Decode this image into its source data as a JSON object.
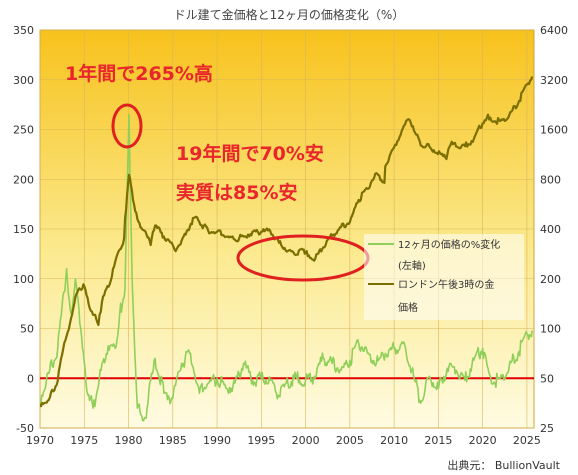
{
  "chart_data": {
    "type": "line",
    "title": "ドル建て金価格と12ヶ月の価格変化（%）",
    "source": "出典元：  BullionVault",
    "x_ticks": [
      "1970",
      "1975",
      "1980",
      "1985",
      "1990",
      "1995",
      "2000",
      "2005",
      "2010",
      "2015",
      "2020",
      "2025"
    ],
    "xlim": [
      1970,
      2025.8
    ],
    "y_left": {
      "ticks": [
        "-50",
        "0",
        "50",
        "100",
        "150",
        "200",
        "250",
        "300",
        "350"
      ],
      "ylim": [
        -50,
        350
      ]
    },
    "y_right": {
      "scale": "log",
      "ticks": [
        "25",
        "50",
        "100",
        "200",
        "400",
        "800",
        "1600",
        "3200",
        "6400"
      ],
      "ylim": [
        25,
        6400
      ]
    },
    "legend": {
      "placement": "center-right",
      "entries": [
        "12ヶ月の価格の%変化",
        "(左軸)",
        "ロンドン午後3時の金",
        "価格"
      ]
    },
    "annotations": [
      {
        "text": "1年間で265%高"
      },
      {
        "text": "19年間で70%安"
      },
      {
        "text": "実質は85%安"
      }
    ],
    "colors": {
      "pct_line": "#8fcf5a",
      "gold_line": "#7b6f00",
      "zero_line": "#e00000",
      "annot": "#e8262b",
      "ellipse": "#e02020"
    },
    "series": [
      {
        "name": "ロンドン午後3時の金価格",
        "axis": "right",
        "x": [
          1970,
          1971,
          1972,
          1973,
          1973.5,
          1974,
          1974.9,
          1975.5,
          1976.6,
          1977,
          1978,
          1979,
          1979.5,
          1980.05,
          1980.5,
          1981,
          1982.5,
          1983,
          1984,
          1985.2,
          1986,
          1987.5,
          1988,
          1989,
          1990,
          1991,
          1992,
          1993,
          1994,
          1995,
          1996,
          1997,
          1998,
          1999,
          1999.8,
          2000,
          2001.1,
          2002,
          2003,
          2004,
          2005,
          2006,
          2007,
          2008,
          2008.9,
          2009,
          2010,
          2011.6,
          2012,
          2013,
          2014,
          2015.9,
          2016.5,
          2017,
          2018,
          2019,
          2020.6,
          2021,
          2022,
          2023,
          2024,
          2025,
          2025.6
        ],
        "values": [
          35,
          37,
          48,
          90,
          115,
          155,
          185,
          140,
          105,
          145,
          195,
          300,
          350,
          850,
          600,
          460,
          320,
          420,
          360,
          300,
          340,
          470,
          440,
          390,
          385,
          360,
          345,
          360,
          385,
          385,
          390,
          330,
          295,
          280,
          300,
          285,
          265,
          310,
          365,
          410,
          440,
          600,
          700,
          870,
          760,
          960,
          1250,
          1850,
          1670,
          1280,
          1260,
          1060,
          1350,
          1260,
          1270,
          1400,
          1970,
          1800,
          1800,
          1950,
          2300,
          3000,
          3350
        ]
      },
      {
        "name": "12ヶ月の価格の%変化",
        "axis": "left",
        "x": [
          1970,
          1971,
          1972,
          1973,
          1973.5,
          1974,
          1974.5,
          1975.2,
          1976,
          1976.7,
          1977.5,
          1978.5,
          1979,
          1979.6,
          1980.05,
          1980.4,
          1981,
          1982,
          1982.6,
          1983,
          1984,
          1985,
          1986,
          1987,
          1988,
          1989,
          1990,
          1991,
          1992,
          1993,
          1994,
          1995,
          1996,
          1997,
          1998,
          1999,
          2000,
          2001,
          2002,
          2003,
          2004,
          2005,
          2006,
          2007,
          2008,
          2009,
          2010,
          2011,
          2012,
          2013,
          2014,
          2015,
          2016,
          2017,
          2018,
          2019,
          2020,
          2021,
          2022,
          2023,
          2024,
          2025,
          2025.6
        ],
        "values": [
          -22,
          5,
          30,
          110,
          65,
          100,
          55,
          -5,
          -30,
          0,
          25,
          30,
          65,
          90,
          265,
          100,
          -30,
          -40,
          5,
          20,
          -15,
          -20,
          15,
          25,
          -15,
          -5,
          0,
          -10,
          -5,
          15,
          -2,
          0,
          -2,
          -18,
          -5,
          0,
          -2,
          2,
          20,
          15,
          8,
          18,
          35,
          25,
          15,
          25,
          30,
          35,
          8,
          -25,
          2,
          -10,
          10,
          8,
          -2,
          18,
          30,
          -5,
          0,
          12,
          25,
          45,
          48
        ]
      }
    ]
  }
}
